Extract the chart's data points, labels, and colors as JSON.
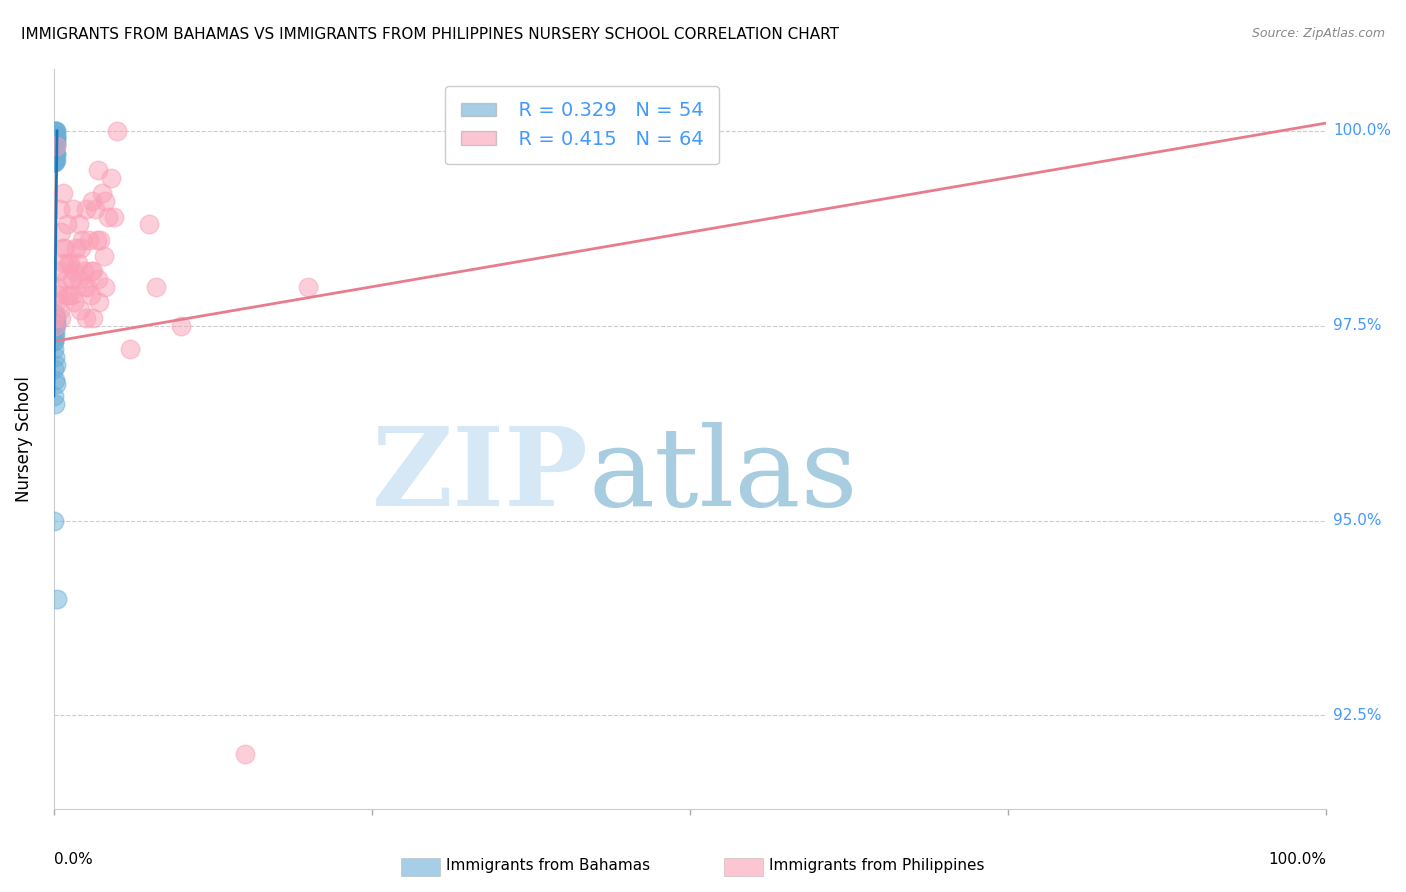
{
  "title": "IMMIGRANTS FROM BAHAMAS VS IMMIGRANTS FROM PHILIPPINES NURSERY SCHOOL CORRELATION CHART",
  "source": "Source: ZipAtlas.com",
  "ylabel": "Nursery School",
  "ytick_labels": [
    "100.0%",
    "97.5%",
    "95.0%",
    "92.5%"
  ],
  "ytick_values": [
    100.0,
    97.5,
    95.0,
    92.5
  ],
  "xlim": [
    0.0,
    100.0
  ],
  "ylim": [
    91.3,
    100.8
  ],
  "legend_r_bahamas": "R = 0.329",
  "legend_n_bahamas": "N = 54",
  "legend_r_philippines": "R = 0.415",
  "legend_n_philippines": "N = 64",
  "color_bahamas": "#6baed6",
  "color_philippines": "#fa9fb5",
  "color_bahamas_line": "#2171b5",
  "color_philippines_line": "#e87c8d",
  "watermark_color": "#d6e8f5",
  "watermark_color2": "#a8cce0",
  "tick_color": "#4499ff",
  "grid_color": "#cccccc",
  "bahamas_x": [
    0.05,
    0.1,
    0.05,
    0.15,
    0.1,
    0.2,
    0.05,
    0.1,
    0.15,
    0.05,
    0.1,
    0.05,
    0.1,
    0.15,
    0.2,
    0.1,
    0.05,
    0.15,
    0.1,
    0.05,
    0.05,
    0.1,
    0.15,
    0.2,
    0.1,
    0.05,
    0.15,
    0.1,
    0.05,
    0.1,
    0.15,
    0.05,
    0.1,
    0.05,
    0.1,
    0.15,
    0.05,
    0.1,
    0.05,
    0.15,
    0.1,
    0.05,
    0.2,
    0.1,
    0.05,
    0.1,
    0.15,
    0.05,
    0.1,
    0.15,
    0.05,
    0.1,
    0.05,
    0.25
  ],
  "bahamas_y": [
    100.0,
    100.0,
    99.95,
    100.0,
    99.93,
    100.0,
    99.85,
    99.9,
    99.92,
    99.88,
    99.9,
    99.8,
    99.8,
    99.9,
    99.93,
    99.8,
    99.7,
    99.83,
    99.75,
    99.7,
    99.75,
    99.78,
    99.85,
    99.7,
    99.7,
    99.6,
    99.7,
    99.62,
    99.65,
    99.6,
    99.63,
    99.6,
    97.65,
    97.55,
    97.5,
    97.6,
    97.45,
    97.42,
    97.3,
    97.52,
    97.48,
    97.3,
    97.52,
    97.35,
    97.2,
    97.1,
    97.0,
    96.95,
    96.8,
    96.75,
    96.6,
    96.5,
    95.0,
    94.0
  ],
  "philippines_x": [
    0.1,
    0.2,
    0.5,
    0.75,
    1.0,
    1.5,
    2.0,
    2.5,
    3.0,
    3.5,
    0.15,
    0.25,
    0.6,
    0.9,
    1.25,
    1.75,
    2.25,
    2.75,
    3.25,
    3.75,
    0.05,
    0.4,
    0.7,
    1.1,
    1.4,
    1.9,
    2.4,
    2.9,
    3.4,
    4.0,
    0.3,
    0.8,
    1.2,
    1.6,
    2.1,
    2.6,
    3.1,
    3.6,
    4.25,
    4.5,
    0.45,
    0.95,
    1.45,
    1.95,
    2.45,
    2.95,
    3.45,
    3.95,
    4.75,
    5.0,
    0.55,
    1.05,
    1.55,
    2.05,
    2.55,
    3.05,
    3.55,
    4.05,
    6.0,
    7.5,
    8.0,
    10.0,
    15.0,
    20.0
  ],
  "philippines_y": [
    97.5,
    99.8,
    99.0,
    99.2,
    98.8,
    99.0,
    98.8,
    99.0,
    99.1,
    99.5,
    97.8,
    98.0,
    98.7,
    98.5,
    98.3,
    98.5,
    98.6,
    98.6,
    99.0,
    99.2,
    97.6,
    98.2,
    98.5,
    98.3,
    98.1,
    98.3,
    98.2,
    98.2,
    98.6,
    99.1,
    97.9,
    98.3,
    97.9,
    98.2,
    98.5,
    98.0,
    98.2,
    98.6,
    98.9,
    99.4,
    97.7,
    98.1,
    97.9,
    98.1,
    98.0,
    97.9,
    98.1,
    98.4,
    98.9,
    100.0,
    97.6,
    97.9,
    97.8,
    97.7,
    97.6,
    97.6,
    97.8,
    98.0,
    97.2,
    98.8,
    98.0,
    97.5,
    92.0,
    98.0
  ],
  "phi_line_x": [
    0.0,
    100.0
  ],
  "phi_line_y": [
    97.3,
    100.1
  ],
  "bah_line_x": [
    0.0,
    0.25
  ],
  "bah_line_y": [
    96.6,
    100.0
  ]
}
